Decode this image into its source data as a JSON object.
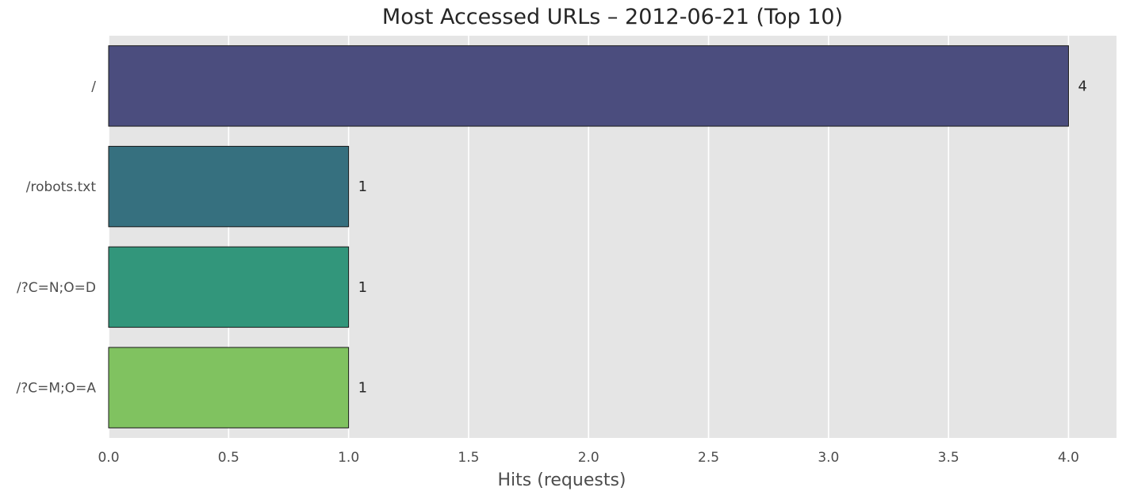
{
  "chart_data": {
    "type": "bar",
    "orientation": "horizontal",
    "title": "Most Accessed URLs – 2012-06-21 (Top 10)",
    "xlabel": "Hits (requests)",
    "ylabel": "",
    "categories": [
      "/",
      "/robots.txt",
      "/?C=N;O=D",
      "/?C=M;O=A"
    ],
    "values": [
      4,
      1,
      1,
      1
    ],
    "data_labels": [
      "4",
      "1",
      "1",
      "1"
    ],
    "colors": [
      "#4b4d7e",
      "#36707f",
      "#32967b",
      "#80c260"
    ],
    "xlim": [
      0,
      4.2
    ],
    "xticks": [
      0,
      0.5,
      1,
      1.5,
      2,
      2.5,
      3,
      3.5,
      4
    ],
    "xtick_labels": [
      "0.0",
      "0.5",
      "1.0",
      "1.5",
      "2.0",
      "2.5",
      "3.0",
      "3.5",
      "4.0"
    ],
    "grid": true,
    "background": "#e5e5e5",
    "grid_color": "#ffffff"
  }
}
